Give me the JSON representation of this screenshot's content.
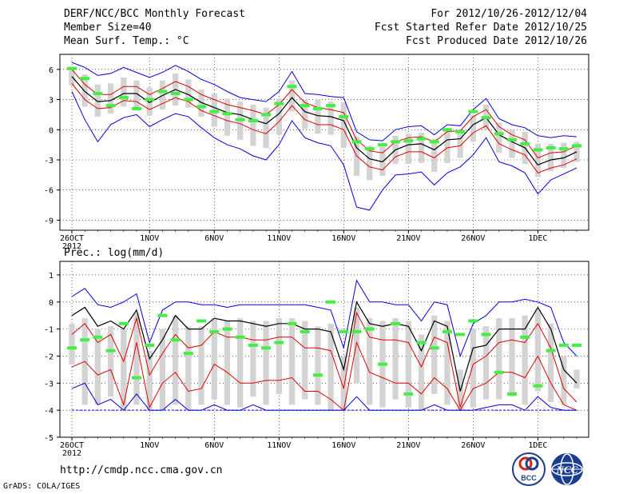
{
  "header": {
    "title": "DERF/NCC/BCC Monthly Forecast",
    "member_size": "Member Size=40",
    "variable": "Mean Surf. Temp.: °C",
    "forecast_period": "For 2012/10/26-2012/12/04",
    "start_date": "Fcst Started Refer Date 2012/10/25",
    "produced_date": "Fcst Produced Date 2012/10/26"
  },
  "footer": {
    "url": "http://cmdp.ncc.cma.gov.cn",
    "credit": "GrADS: COLA/IGES",
    "logo_bcc": "BCC",
    "logo_ncc": "NCC"
  },
  "colors": {
    "box": "#d3d3d3",
    "mean": "#000000",
    "spread": "#e00000",
    "range": "#0000dd",
    "marker": "#44ee44",
    "baseline": "#0000dd"
  },
  "chart_data": [
    {
      "type": "line",
      "title": "Mean Surf. Temp.: °C",
      "ylim": [
        -10,
        7.5
      ],
      "yticks": [
        6,
        3,
        0,
        -3,
        -6,
        -9
      ],
      "xtick_labels": [
        "26OCT",
        "1NOV",
        "6NOV",
        "11NOV",
        "16NOV",
        "21NOV",
        "26NOV",
        "1DEC"
      ],
      "xtick_index": [
        0,
        6,
        11,
        16,
        21,
        26,
        31,
        36
      ],
      "year_label": "2012",
      "days": 40,
      "series": [
        {
          "name": "ensemble mean",
          "values": [
            5.3,
            3.8,
            2.8,
            2.9,
            3.6,
            3.6,
            2.7,
            3.4,
            4.0,
            3.5,
            2.7,
            2.2,
            1.7,
            1.5,
            1.0,
            0.6,
            1.6,
            3.2,
            1.8,
            1.4,
            1.3,
            0.9,
            -1.8,
            -2.9,
            -3.2,
            -2.0,
            -1.5,
            -1.4,
            -2.0,
            -1.0,
            -0.9,
            0.5,
            1.2,
            -0.5,
            -1.2,
            -1.8,
            -3.5,
            -3.0,
            -2.8,
            -2.2
          ]
        },
        {
          "name": "upper spread",
          "values": [
            6.0,
            4.5,
            3.5,
            3.5,
            4.3,
            4.3,
            3.5,
            4.1,
            4.8,
            4.3,
            3.5,
            3.0,
            2.5,
            2.2,
            1.9,
            1.5,
            2.5,
            4.0,
            2.7,
            2.2,
            2.0,
            1.7,
            -1.0,
            -2.1,
            -2.3,
            -1.2,
            -0.8,
            -0.7,
            -1.2,
            -0.2,
            -0.1,
            1.3,
            2.0,
            0.3,
            -0.5,
            -1.0,
            -2.8,
            -2.3,
            -2.2,
            -1.6
          ]
        },
        {
          "name": "lower spread",
          "values": [
            4.6,
            3.0,
            2.1,
            2.2,
            2.9,
            2.8,
            2.0,
            2.6,
            3.2,
            2.8,
            1.9,
            1.4,
            0.9,
            0.6,
            0.0,
            -0.4,
            0.8,
            2.4,
            1.0,
            0.5,
            0.5,
            0.0,
            -2.6,
            -3.7,
            -4.0,
            -2.7,
            -2.2,
            -2.2,
            -2.8,
            -1.8,
            -1.6,
            -0.3,
            0.4,
            -1.4,
            -2.0,
            -2.5,
            -4.3,
            -3.8,
            -3.5,
            -2.9
          ]
        },
        {
          "name": "ensemble max",
          "values": [
            6.7,
            6.2,
            5.4,
            5.6,
            6.2,
            5.7,
            5.2,
            5.7,
            6.4,
            5.8,
            5.0,
            4.5,
            3.8,
            3.2,
            3.0,
            2.8,
            3.8,
            5.8,
            3.6,
            3.5,
            3.3,
            3.2,
            -0.2,
            -1.0,
            -1.1,
            0.0,
            0.3,
            0.4,
            -0.5,
            0.5,
            0.4,
            2.0,
            3.1,
            1.1,
            0.5,
            0.2,
            -0.6,
            -0.8,
            -0.6,
            -0.7
          ]
        },
        {
          "name": "ensemble min",
          "values": [
            3.8,
            1.0,
            -1.2,
            0.5,
            1.2,
            1.5,
            0.3,
            1.0,
            1.6,
            1.3,
            0.2,
            -0.8,
            -1.5,
            -1.9,
            -2.6,
            -3.0,
            -1.5,
            0.9,
            -0.8,
            -1.3,
            -1.6,
            -3.5,
            -7.7,
            -8.0,
            -6.0,
            -4.5,
            -4.4,
            -4.2,
            -5.5,
            -4.3,
            -3.7,
            -2.5,
            -0.8,
            -3.2,
            -3.6,
            -4.3,
            -6.4,
            -5.0,
            -4.4,
            -3.8
          ]
        },
        {
          "name": "observed marker",
          "values": [
            6.1,
            5.1,
            3.6,
            2.4,
            3.2,
            2.1,
            3.0,
            3.8,
            3.6,
            3.0,
            2.3,
            1.8,
            1.6,
            1.0,
            0.9,
            1.5,
            2.6,
            4.3,
            2.4,
            2.1,
            2.4,
            1.3,
            -1.2,
            -1.9,
            -1.5,
            -1.2,
            -1.1,
            -0.9,
            -1.2,
            0.0,
            -0.2,
            1.8,
            1.2,
            -0.4,
            -1.0,
            -1.4,
            -2.0,
            -1.8,
            -1.9,
            -1.6
          ]
        }
      ],
      "boxes": {
        "upper": [
          6.2,
          5.5,
          4.5,
          4.6,
          5.2,
          4.9,
          4.2,
          4.9,
          5.6,
          5.0,
          4.0,
          3.6,
          3.1,
          2.8,
          2.5,
          2.2,
          3.1,
          4.9,
          3.0,
          3.0,
          2.8,
          2.7,
          -0.7,
          -1.6,
          -1.7,
          -0.6,
          -0.4,
          -0.3,
          -0.9,
          0.1,
          0.0,
          1.5,
          2.5,
          0.7,
          0.0,
          -0.2,
          -1.4,
          -1.4,
          -1.3,
          -1.2
        ],
        "lower": [
          4.4,
          2.3,
          1.3,
          1.6,
          2.3,
          2.1,
          1.4,
          2.0,
          2.4,
          2.2,
          1.3,
          0.3,
          -0.6,
          -1.0,
          -1.6,
          -1.8,
          -0.5,
          1.8,
          0.1,
          -0.4,
          -0.5,
          -1.8,
          -4.6,
          -5.0,
          -4.6,
          -3.4,
          -3.4,
          -3.3,
          -4.2,
          -3.3,
          -2.8,
          -1.2,
          0.0,
          -2.3,
          -2.8,
          -3.4,
          -4.7,
          -4.1,
          -3.8,
          -3.2
        ]
      }
    },
    {
      "type": "line",
      "title": "Prec.: log(mm/d)",
      "ylim": [
        -5,
        1.5
      ],
      "yticks": [
        1,
        0,
        -1,
        -2,
        -3,
        -4,
        -5
      ],
      "xtick_labels": [
        "26OCT",
        "1NOV",
        "6NOV",
        "11NOV",
        "16NOV",
        "21NOV",
        "26NOV",
        "1DEC"
      ],
      "xtick_index": [
        0,
        6,
        11,
        16,
        21,
        26,
        31,
        36
      ],
      "year_label": "2012",
      "days": 40,
      "baseline": -4,
      "series": [
        {
          "name": "ensemble mean",
          "values": [
            -0.5,
            -0.2,
            -0.9,
            -0.7,
            -1.0,
            -0.3,
            -2.1,
            -1.4,
            -0.5,
            -1.0,
            -1.0,
            -0.6,
            -0.7,
            -0.7,
            -0.8,
            -0.9,
            -0.8,
            -0.8,
            -1.0,
            -1.0,
            -1.1,
            -2.5,
            0.0,
            -0.8,
            -0.9,
            -0.8,
            -0.9,
            -1.8,
            -0.7,
            -0.9,
            -3.3,
            -1.7,
            -1.6,
            -1.0,
            -1.0,
            -1.0,
            -0.2,
            -1.0,
            -2.5,
            -3.0
          ]
        },
        {
          "name": "upper spread",
          "values": [
            -1.2,
            -0.8,
            -1.5,
            -1.2,
            -2.2,
            -0.6,
            -2.7,
            -1.9,
            -1.2,
            -1.7,
            -1.6,
            -1.1,
            -1.3,
            -1.3,
            -1.4,
            -1.4,
            -1.3,
            -1.3,
            -1.7,
            -1.7,
            -1.8,
            -3.2,
            -0.4,
            -1.3,
            -1.4,
            -1.4,
            -1.5,
            -2.4,
            -1.3,
            -1.5,
            -3.9,
            -2.3,
            -2.0,
            -1.5,
            -1.4,
            -1.5,
            -0.8,
            -1.7,
            -3.2,
            -3.7
          ]
        },
        {
          "name": "lower spread",
          "values": [
            -2.4,
            -2.2,
            -2.7,
            -2.5,
            -3.8,
            -1.5,
            -3.9,
            -3.0,
            -2.6,
            -3.3,
            -3.2,
            -2.3,
            -2.6,
            -3.0,
            -3.0,
            -2.9,
            -2.9,
            -2.8,
            -3.3,
            -3.3,
            -3.6,
            -4.0,
            -1.5,
            -2.6,
            -2.8,
            -3.0,
            -3.0,
            -3.4,
            -2.8,
            -3.2,
            -4.0,
            -3.2,
            -3.0,
            -2.6,
            -2.6,
            -2.8,
            -2.0,
            -3.0,
            -3.8,
            -4.0
          ]
        },
        {
          "name": "ensemble max",
          "values": [
            0.2,
            0.5,
            -0.1,
            -0.2,
            0.0,
            0.3,
            -1.5,
            -0.3,
            0.0,
            0.0,
            -0.1,
            -0.1,
            -0.2,
            -0.1,
            -0.1,
            -0.1,
            -0.1,
            -0.1,
            -0.1,
            -0.2,
            -0.3,
            -1.7,
            0.8,
            0.0,
            0.0,
            -0.1,
            -0.1,
            -0.7,
            0.0,
            -0.1,
            -2.0,
            -0.8,
            -0.5,
            0.0,
            0.0,
            0.1,
            0.0,
            -0.2,
            -1.5,
            -2.0
          ]
        },
        {
          "name": "ensemble min",
          "values": [
            -3.2,
            -3.0,
            -3.8,
            -3.6,
            -4.0,
            -3.4,
            -4.0,
            -4.0,
            -3.6,
            -4.0,
            -4.0,
            -3.8,
            -4.0,
            -4.0,
            -3.8,
            -4.0,
            -4.0,
            -4.0,
            -4.0,
            -4.0,
            -4.0,
            -4.0,
            -3.5,
            -4.0,
            -4.0,
            -4.0,
            -4.0,
            -4.0,
            -3.8,
            -4.0,
            -4.0,
            -4.0,
            -3.9,
            -3.8,
            -3.8,
            -4.0,
            -3.5,
            -3.9,
            -4.0,
            -4.0
          ]
        },
        {
          "name": "observed marker",
          "values": [
            -1.7,
            -1.4,
            -1.3,
            -1.8,
            -0.8,
            -2.8,
            -1.6,
            -0.5,
            -1.4,
            -1.9,
            -0.7,
            -1.1,
            -1.0,
            -1.3,
            -1.6,
            -1.7,
            -1.5,
            -0.8,
            -1.1,
            -2.7,
            -0.0,
            -1.1,
            -1.1,
            -1.0,
            -2.3,
            -0.8,
            -3.4,
            -1.5,
            -1.7,
            -1.1,
            -1.2,
            -0.7,
            -1.2,
            -2.6,
            -3.4,
            -1.3,
            -3.1,
            -1.8,
            -1.6,
            -1.6
          ]
        }
      ],
      "boxes": {
        "upper": [
          -0.8,
          -0.6,
          -1.0,
          -0.9,
          -1.0,
          -0.4,
          -1.8,
          -1.0,
          -0.5,
          -0.9,
          -0.9,
          -0.6,
          -0.7,
          -0.6,
          -0.7,
          -0.7,
          -0.6,
          -0.6,
          -0.7,
          -0.9,
          -0.8,
          -2.0,
          -0.2,
          -0.6,
          -0.7,
          -0.6,
          -0.7,
          -1.2,
          -0.5,
          -0.7,
          -2.5,
          -1.0,
          -0.9,
          -0.6,
          -0.6,
          -0.5,
          -0.3,
          -0.8,
          -2.0,
          -2.5
        ],
        "lower": [
          -2.3,
          -3.8,
          -3.8,
          -3.5,
          -4.0,
          -3.8,
          -4.0,
          -4.0,
          -3.8,
          -4.0,
          -3.8,
          -3.6,
          -3.8,
          -3.9,
          -3.5,
          -3.8,
          -3.4,
          -3.8,
          -3.6,
          -3.8,
          -4.0,
          -4.0,
          -3.0,
          -3.8,
          -3.9,
          -3.6,
          -3.9,
          -4.0,
          -3.4,
          -3.8,
          -4.0,
          -3.9,
          -3.6,
          -3.6,
          -3.5,
          -3.8,
          -3.3,
          -3.7,
          -3.8,
          -3.2
        ]
      }
    }
  ]
}
